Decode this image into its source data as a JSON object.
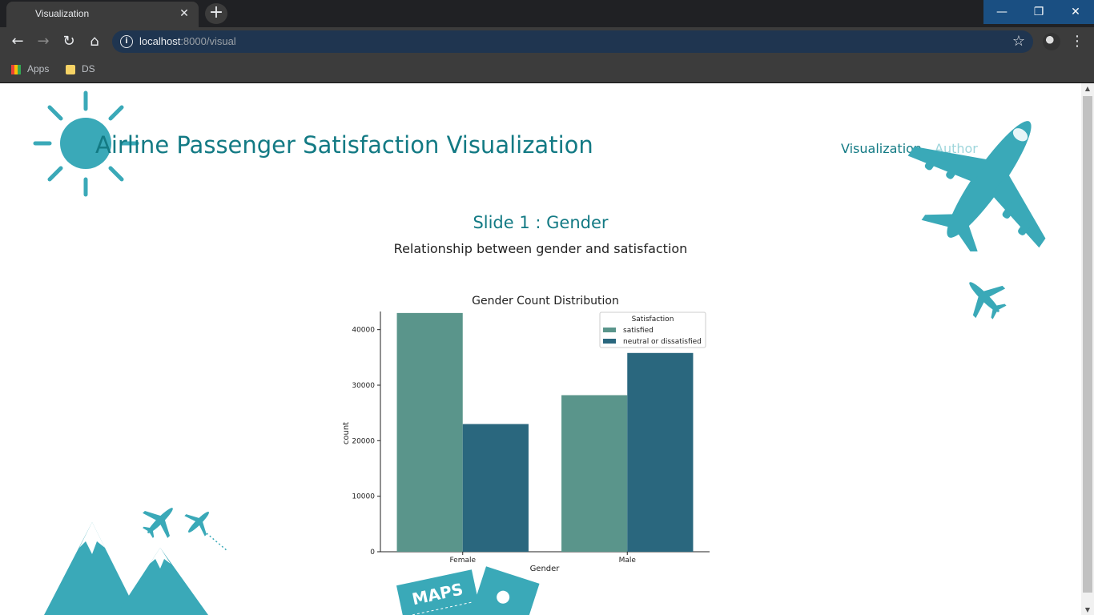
{
  "browser": {
    "tab_title": "Visualization",
    "tab_close_icon": "close-icon",
    "url_host": "localhost",
    "url_path": ":8000/visual",
    "bookmarks": [
      {
        "label": "Apps",
        "icon": "apps-grid-icon"
      },
      {
        "label": "DS",
        "icon": "folder-icon"
      }
    ]
  },
  "header": {
    "title": "Airline Passenger Satisfaction Visualization",
    "nav": [
      {
        "label": "Visualization"
      },
      {
        "label": "Author"
      }
    ]
  },
  "slide": {
    "title": "Slide 1 : Gender",
    "subtitle": "Relationship between gender and satisfaction"
  },
  "colors": {
    "accent": "#137a84",
    "deco": "#3aa9b8",
    "satisfied": "#5a958b",
    "dissatisfied": "#2a677e"
  },
  "chart_data": {
    "type": "bar",
    "title": "Gender Count Distribution",
    "xlabel": "Gender",
    "ylabel": "count",
    "categories": [
      "Female",
      "Male"
    ],
    "legend_title": "Satisfaction",
    "legend_position": "top-right",
    "series": [
      {
        "name": "satisfied",
        "values": [
          43000,
          28200
        ],
        "color": "#5a958b"
      },
      {
        "name": "neutral or dissatisfied",
        "values": [
          23000,
          35800
        ],
        "color": "#2a677e"
      }
    ],
    "ylim": [
      0,
      45000
    ],
    "yticks": [
      0,
      10000,
      20000,
      30000,
      40000
    ],
    "grid": false
  }
}
